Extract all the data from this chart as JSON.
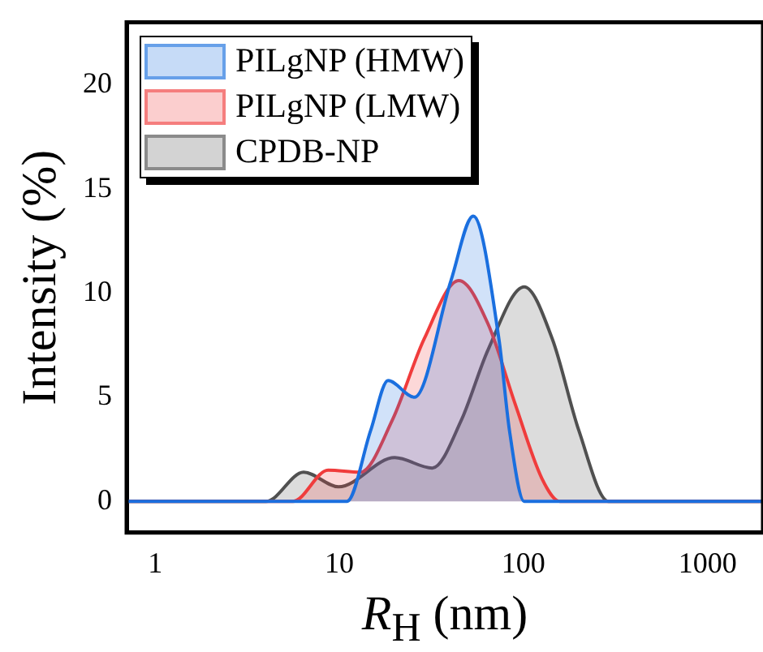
{
  "chart_data": {
    "type": "area",
    "xlabel": "R$_{H}$ (nm)",
    "ylabel": "Intensity (%)",
    "log": "x",
    "xlim": [
      0.7,
      2000
    ],
    "xticks": [
      1,
      10,
      100,
      1000
    ],
    "ylim": [
      -1.5,
      23
    ],
    "yticks": [
      0,
      5,
      10,
      15,
      20
    ],
    "grid": false,
    "legend": "top left",
    "marker": "none",
    "series": [
      {
        "name": "PILgNP (HMW)",
        "color": "#1a6fdf",
        "x": [
          0.7,
          11,
          14.8,
          18.4,
          25.6,
          40.4,
          53.4,
          73.6,
          84,
          101,
          2000
        ],
        "values": [
          0,
          0,
          3.4,
          5.8,
          5.0,
          10.6,
          13.7,
          7.8,
          3.4,
          0,
          0
        ]
      },
      {
        "name": "PILgNP (LMW)",
        "color": "#f03c3c",
        "x": [
          0.7,
          5.6,
          8.7,
          13,
          19.4,
          28.9,
          44.6,
          64.4,
          90,
          126,
          158,
          2000
        ],
        "values": [
          0,
          0,
          1.5,
          1.4,
          3.9,
          7.8,
          10.6,
          8.5,
          4.7,
          1.1,
          0,
          0
        ]
      },
      {
        "name": "CPDB-NP",
        "color": "#505050",
        "x": [
          0.7,
          4,
          6.4,
          9.9,
          20,
          32,
          46,
          64.4,
          101,
          143.5,
          200,
          290,
          2000
        ],
        "values": [
          0,
          0,
          1.4,
          0.7,
          2.1,
          1.6,
          3.9,
          7.3,
          10.3,
          7.8,
          3.4,
          0,
          0
        ]
      }
    ]
  }
}
